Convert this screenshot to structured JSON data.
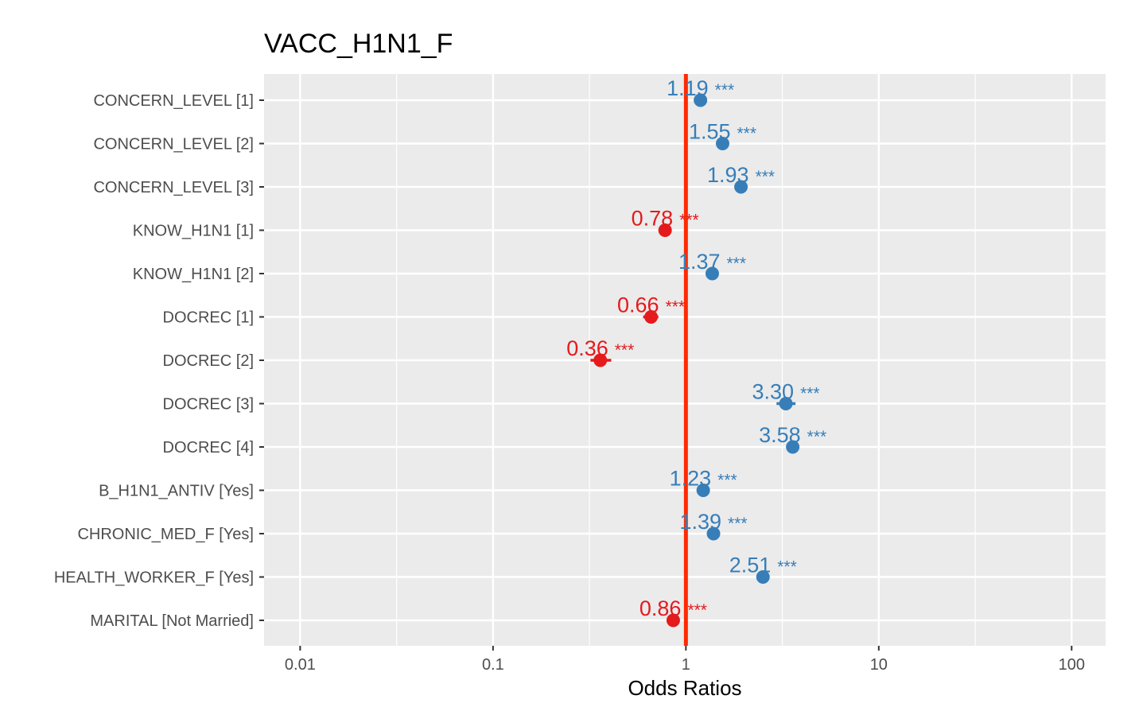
{
  "chart_data": {
    "type": "scatter",
    "title": "VACC_H1N1_F",
    "xlabel": "Odds Ratios",
    "x_scale": "log10",
    "xlim": [
      0.0065,
      150
    ],
    "x_ticks": [
      0.01,
      0.1,
      1,
      10,
      100
    ],
    "x_tick_labels": [
      "0.01",
      "0.1",
      "1",
      "10",
      "100"
    ],
    "reference_line": 1,
    "colors": {
      "positive": "#377eb8",
      "negative": "#e41a1c",
      "reference_line": "#ff2a00",
      "panel": "#ebebeb",
      "grid": "#ffffff"
    },
    "terms": [
      {
        "label": "CONCERN_LEVEL [1]",
        "estimate": 1.19,
        "ci": [
          1.12,
          1.26
        ],
        "value_label": "1.19",
        "stars": "***"
      },
      {
        "label": "CONCERN_LEVEL [2]",
        "estimate": 1.55,
        "ci": [
          1.47,
          1.64
        ],
        "value_label": "1.55",
        "stars": "***"
      },
      {
        "label": "CONCERN_LEVEL [3]",
        "estimate": 1.93,
        "ci": [
          1.82,
          2.05
        ],
        "value_label": "1.93",
        "stars": "***"
      },
      {
        "label": "KNOW_H1N1 [1]",
        "estimate": 0.78,
        "ci": [
          0.73,
          0.83
        ],
        "value_label": "0.78",
        "stars": "***"
      },
      {
        "label": "KNOW_H1N1 [2]",
        "estimate": 1.37,
        "ci": [
          1.29,
          1.45
        ],
        "value_label": "1.37",
        "stars": "***"
      },
      {
        "label": "DOCREC [1]",
        "estimate": 0.66,
        "ci": [
          0.6,
          0.72
        ],
        "value_label": "0.66",
        "stars": "***"
      },
      {
        "label": "DOCREC [2]",
        "estimate": 0.36,
        "ci": [
          0.32,
          0.41
        ],
        "value_label": "0.36",
        "stars": "***"
      },
      {
        "label": "DOCREC [3]",
        "estimate": 3.3,
        "ci": [
          2.95,
          3.7
        ],
        "value_label": "3.30",
        "stars": "***"
      },
      {
        "label": "DOCREC [4]",
        "estimate": 3.58,
        "ci": [
          3.32,
          3.86
        ],
        "value_label": "3.58",
        "stars": "***"
      },
      {
        "label": "B_H1N1_ANTIV [Yes]",
        "estimate": 1.23,
        "ci": [
          1.17,
          1.29
        ],
        "value_label": "1.23",
        "stars": "***"
      },
      {
        "label": "CHRONIC_MED_F [Yes]",
        "estimate": 1.39,
        "ci": [
          1.32,
          1.46
        ],
        "value_label": "1.39",
        "stars": "***"
      },
      {
        "label": "HEALTH_WORKER_F [Yes]",
        "estimate": 2.51,
        "ci": [
          2.38,
          2.64
        ],
        "value_label": "2.51",
        "stars": "***"
      },
      {
        "label": "MARITAL [Not Married]",
        "estimate": 0.86,
        "ci": [
          0.82,
          0.9
        ],
        "value_label": "0.86",
        "stars": "***"
      }
    ]
  }
}
